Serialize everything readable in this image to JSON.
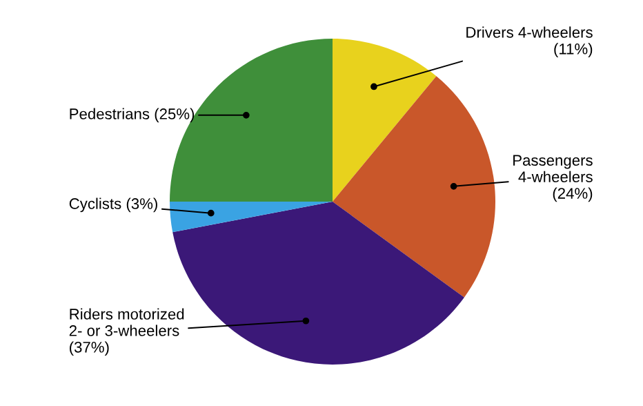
{
  "chart_data": {
    "type": "pie",
    "categories": [
      "Drivers 4-wheelers",
      "Passengers\n4-wheelers",
      "Riders motorized\n2- or 3-wheelers",
      "Cyclists",
      "Pedestrians"
    ],
    "values": [
      11,
      24,
      37,
      3,
      25
    ],
    "value_labels": [
      "(11%)",
      "(24%)",
      "(37%)",
      "(3%)",
      "(25%)"
    ],
    "colors": [
      "#e8d21d",
      "#c9572a",
      "#3b1878",
      "#3aa3e3",
      "#3f8f3a"
    ],
    "legend": false
  }
}
